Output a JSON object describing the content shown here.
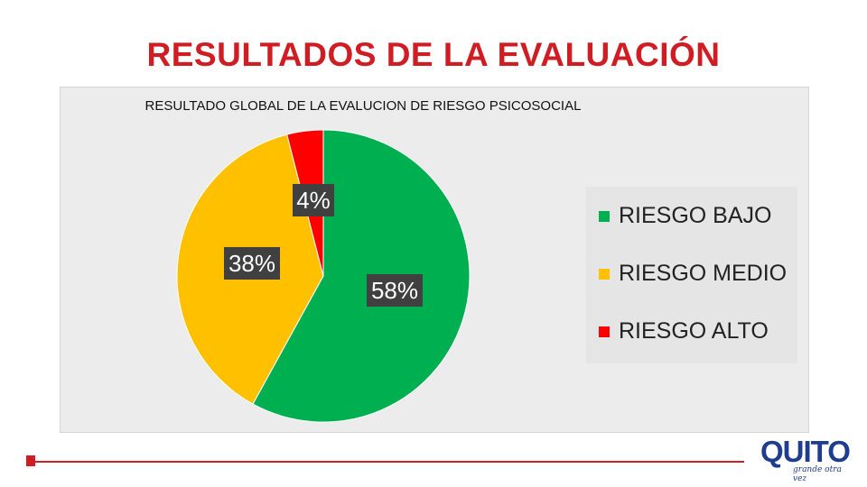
{
  "slide": {
    "title": "RESULTADOS DE LA EVALUACIÓN"
  },
  "logo": {
    "text": "QUITO",
    "tagline": "grande otra vez"
  },
  "colors": {
    "accent": "#d01d24",
    "logo": "#1f3d8f"
  },
  "chart_data": {
    "type": "pie",
    "title": "RESULTADO GLOBAL DE LA EVALUCION DE RIESGO PSICOSOCIAL",
    "categories": [
      "RIESGO BAJO",
      "RIESGO MEDIO",
      "RIESGO ALTO"
    ],
    "values": [
      58,
      38,
      4
    ],
    "labels": [
      "58%",
      "38%",
      "4%"
    ],
    "colors": [
      "#00b050",
      "#ffc000",
      "#ff0000"
    ],
    "legend": "right"
  }
}
